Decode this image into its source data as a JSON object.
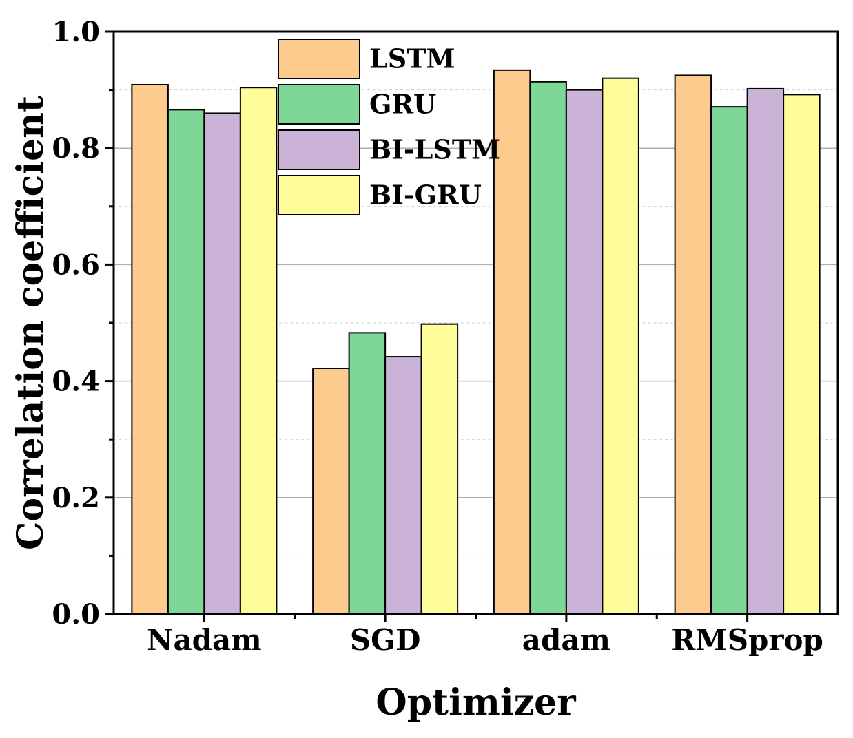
{
  "chart_data": {
    "type": "bar",
    "title": "",
    "xlabel": "Optimizer",
    "ylabel": "Correlation coefficient",
    "ylim": [
      0.0,
      1.0
    ],
    "yticks": [
      "0.0",
      "0.2",
      "0.4",
      "0.6",
      "0.8",
      "1.0"
    ],
    "categories": [
      "Nadam",
      "SGD",
      "adam",
      "RMSprop"
    ],
    "series": [
      {
        "name": "LSTM",
        "color": "#FECB8E",
        "values": [
          0.909,
          0.422,
          0.934,
          0.925
        ]
      },
      {
        "name": "GRU",
        "color": "#7ED796",
        "values": [
          0.866,
          0.483,
          0.914,
          0.871
        ]
      },
      {
        "name": "BI-LSTM",
        "color": "#CAB3D6",
        "values": [
          0.86,
          0.442,
          0.9,
          0.902
        ]
      },
      {
        "name": "BI-GRU",
        "color": "#FFFD9A",
        "values": [
          0.904,
          0.498,
          0.92,
          0.892
        ]
      }
    ],
    "legend_position": "top-center",
    "grid": true
  }
}
